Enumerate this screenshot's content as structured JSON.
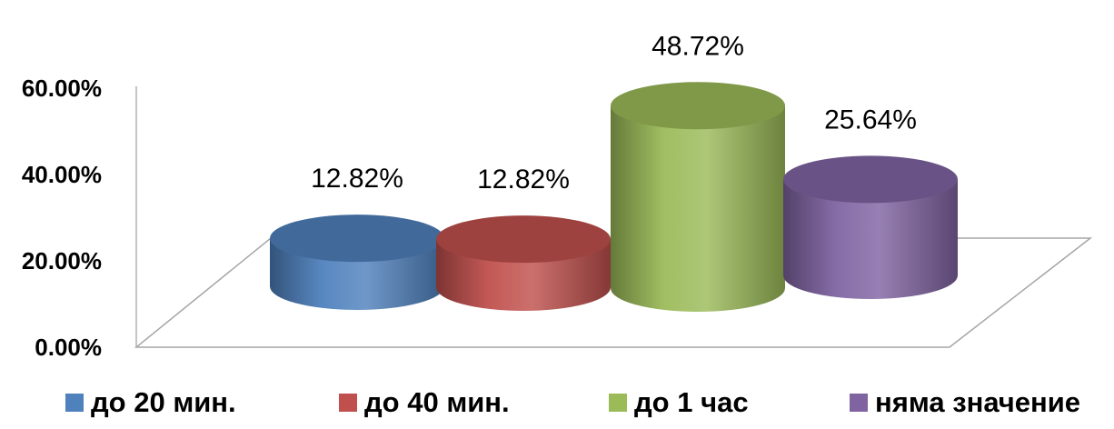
{
  "chart_data": {
    "type": "bar",
    "style": "3d-cylinder",
    "categories": [
      "до 20 мин.",
      "до 40 мин.",
      "до 1 час",
      "няма значение"
    ],
    "values": [
      12.82,
      12.82,
      48.72,
      25.64
    ],
    "data_labels": [
      "12.82%",
      "12.82%",
      "48.72%",
      "25.64%"
    ],
    "colors": [
      "#4f81bd",
      "#c0504d",
      "#9bbb59",
      "#8064a2"
    ],
    "yticks": [
      "0.00%",
      "20.00%",
      "40.00%",
      "60.00%"
    ],
    "ylim": [
      0,
      60
    ],
    "legend_position": "bottom",
    "grid": false,
    "title": "",
    "xlabel": "",
    "ylabel": ""
  }
}
